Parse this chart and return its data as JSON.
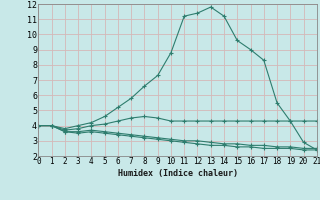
{
  "xlabel": "Humidex (Indice chaleur)",
  "background_color": "#c8e8e8",
  "grid_color": "#d4b8b8",
  "line_color": "#2e7d6e",
  "xlim": [
    0,
    21
  ],
  "ylim": [
    2,
    12
  ],
  "xticks": [
    0,
    1,
    2,
    3,
    4,
    5,
    6,
    7,
    8,
    9,
    10,
    11,
    12,
    13,
    14,
    15,
    16,
    17,
    18,
    19,
    20,
    21
  ],
  "yticks": [
    2,
    3,
    4,
    5,
    6,
    7,
    8,
    9,
    10,
    11,
    12
  ],
  "series": [
    {
      "x": [
        0,
        1,
        2,
        3,
        4,
        5,
        6,
        7,
        8,
        9,
        10,
        11,
        12,
        13,
        14,
        15,
        16,
        17,
        18,
        19,
        20,
        21
      ],
      "y": [
        4.0,
        4.0,
        3.8,
        4.0,
        4.2,
        4.6,
        5.2,
        5.8,
        6.6,
        7.3,
        8.8,
        11.2,
        11.4,
        11.8,
        11.2,
        9.6,
        9.0,
        8.3,
        5.5,
        4.3,
        2.9,
        2.4
      ]
    },
    {
      "x": [
        0,
        1,
        2,
        3,
        4,
        5,
        6,
        7,
        8,
        9,
        10,
        11,
        12,
        13,
        14,
        15,
        16,
        17,
        18,
        19,
        20,
        21
      ],
      "y": [
        4.0,
        4.0,
        3.7,
        3.8,
        4.0,
        4.1,
        4.3,
        4.5,
        4.6,
        4.5,
        4.3,
        4.3,
        4.3,
        4.3,
        4.3,
        4.3,
        4.3,
        4.3,
        4.3,
        4.3,
        4.3,
        4.3
      ]
    },
    {
      "x": [
        0,
        1,
        2,
        3,
        4,
        5,
        6,
        7,
        8,
        9,
        10,
        11,
        12,
        13,
        14,
        15,
        16,
        17,
        18,
        19,
        20,
        21
      ],
      "y": [
        4.0,
        4.0,
        3.6,
        3.6,
        3.7,
        3.6,
        3.5,
        3.4,
        3.3,
        3.2,
        3.1,
        3.0,
        3.0,
        2.9,
        2.8,
        2.8,
        2.7,
        2.7,
        2.6,
        2.6,
        2.5,
        2.5
      ]
    },
    {
      "x": [
        0,
        1,
        2,
        3,
        4,
        5,
        6,
        7,
        8,
        9,
        10,
        11,
        12,
        13,
        14,
        15,
        16,
        17,
        18,
        19,
        20,
        21
      ],
      "y": [
        4.0,
        4.0,
        3.6,
        3.5,
        3.6,
        3.5,
        3.4,
        3.3,
        3.2,
        3.1,
        3.0,
        2.9,
        2.8,
        2.7,
        2.7,
        2.6,
        2.6,
        2.5,
        2.5,
        2.5,
        2.4,
        2.4
      ]
    }
  ]
}
